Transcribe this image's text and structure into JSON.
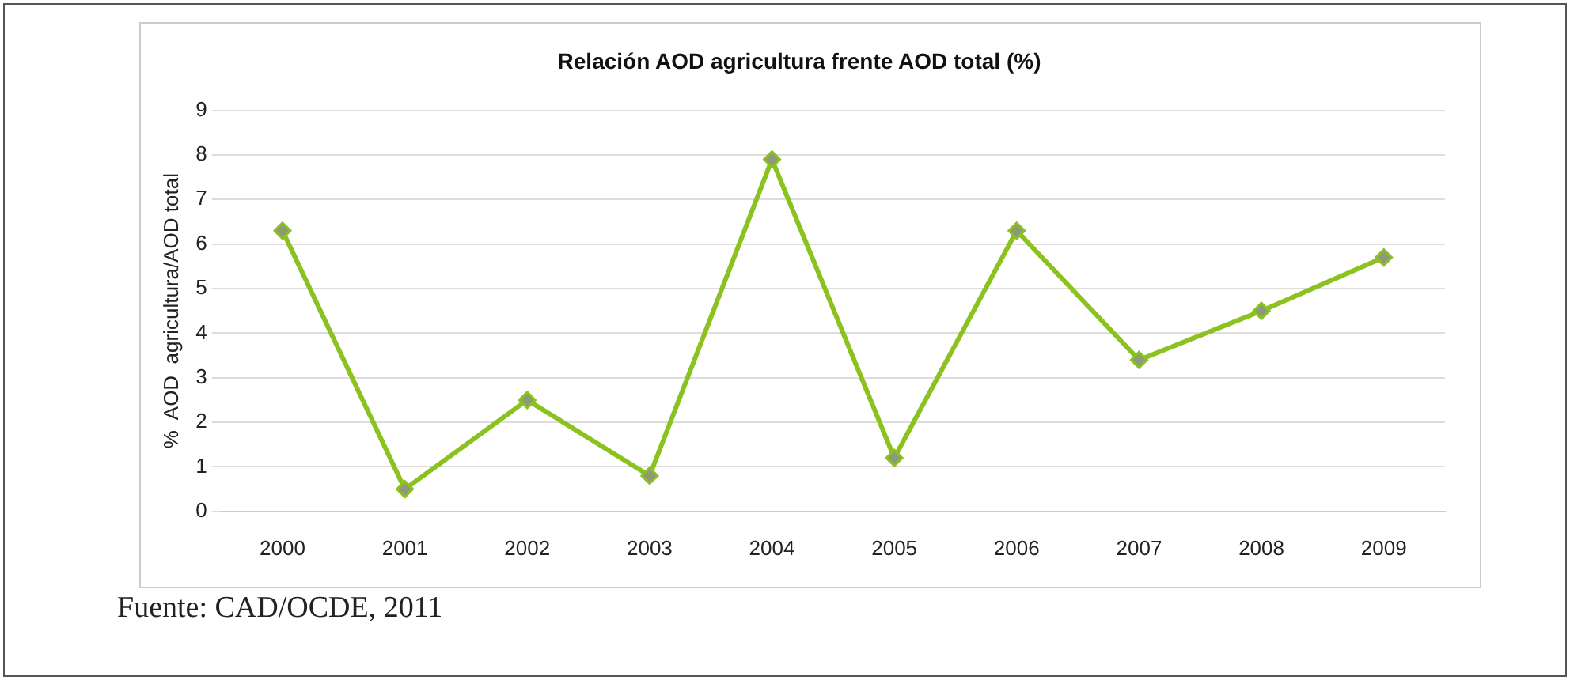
{
  "chart_data": {
    "type": "line",
    "title": "Relación AOD agricultura frente AOD total (%)",
    "ylabel": "%  AOD  agricultura/AOD total",
    "categories": [
      "2000",
      "2001",
      "2002",
      "2003",
      "2004",
      "2005",
      "2006",
      "2007",
      "2008",
      "2009"
    ],
    "series": [
      {
        "color": "#8cc21f",
        "values": [
          6.3,
          0.5,
          2.5,
          0.8,
          7.9,
          1.2,
          6.3,
          3.4,
          4.5,
          5.7
        ]
      }
    ],
    "ylim": [
      0,
      9
    ],
    "yticks": [
      0,
      1,
      2,
      3,
      4,
      5,
      6,
      7,
      8,
      9
    ],
    "grid": "y",
    "legend": false,
    "marker": "diamond",
    "line_style": "solid",
    "annotations": [
      "Fuente: CAD/OCDE, 2011"
    ]
  }
}
